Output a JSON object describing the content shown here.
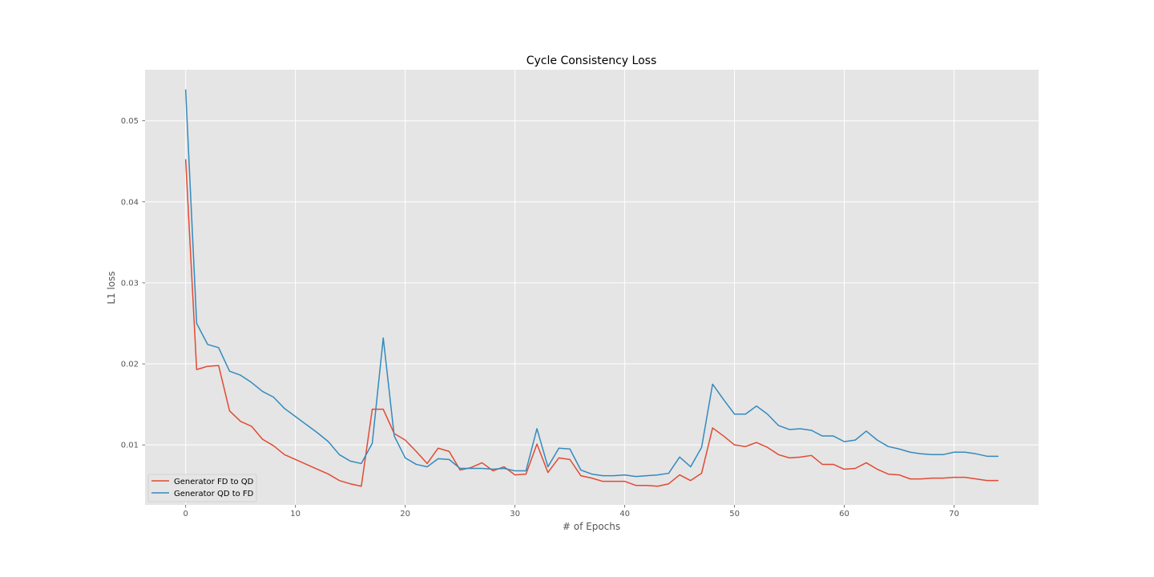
{
  "chart_data": {
    "type": "line",
    "title": "Cycle Consistency Loss",
    "xlabel": "# of Epochs",
    "ylabel": "L1 loss",
    "xlim": [
      -3.7,
      77.7
    ],
    "ylim": [
      0.0026,
      0.0563
    ],
    "xticks": [
      0,
      10,
      20,
      30,
      40,
      50,
      60,
      70
    ],
    "yticks": [
      0.01,
      0.02,
      0.03,
      0.04,
      0.05
    ],
    "ytick_labels": [
      "0.01",
      "0.02",
      "0.03",
      "0.04",
      "0.05"
    ],
    "grid": true,
    "legend_position": "lower-left",
    "plot_background": "#e5e5e5",
    "series": [
      {
        "name": "Generator FD to QD",
        "color": "#e24a33",
        "values": [
          0.0452,
          0.0193,
          0.0197,
          0.0198,
          0.0142,
          0.0129,
          0.0123,
          0.0107,
          0.0099,
          0.0088,
          0.0082,
          0.0076,
          0.007,
          0.0064,
          0.0056,
          0.0052,
          0.0049,
          0.0144,
          0.0144,
          0.0114,
          0.0106,
          0.0092,
          0.0077,
          0.0096,
          0.0092,
          0.0069,
          0.0072,
          0.0078,
          0.0068,
          0.0073,
          0.0063,
          0.0064,
          0.0101,
          0.0066,
          0.0084,
          0.0082,
          0.0062,
          0.0059,
          0.0055,
          0.0055,
          0.0055,
          0.005,
          0.005,
          0.0049,
          0.0052,
          0.0063,
          0.0056,
          0.0065,
          0.0121,
          0.0111,
          0.01,
          0.0098,
          0.0103,
          0.0097,
          0.0088,
          0.0084,
          0.0085,
          0.0087,
          0.0076,
          0.0076,
          0.007,
          0.0071,
          0.0078,
          0.007,
          0.0064,
          0.0063,
          0.0058,
          0.0058,
          0.0059,
          0.0059,
          0.006,
          0.006,
          0.0058,
          0.0056,
          0.0056
        ]
      },
      {
        "name": "Generator QD to FD",
        "color": "#348abd",
        "values": [
          0.0538,
          0.025,
          0.0224,
          0.022,
          0.0191,
          0.0186,
          0.0177,
          0.0166,
          0.0159,
          0.0145,
          0.0135,
          0.0125,
          0.0115,
          0.0104,
          0.0088,
          0.008,
          0.0077,
          0.0102,
          0.0232,
          0.0111,
          0.0084,
          0.0076,
          0.0073,
          0.0083,
          0.0082,
          0.0071,
          0.0071,
          0.0071,
          0.007,
          0.0071,
          0.0068,
          0.0068,
          0.012,
          0.0073,
          0.0096,
          0.0095,
          0.0069,
          0.0064,
          0.0062,
          0.0062,
          0.0063,
          0.0061,
          0.0062,
          0.0063,
          0.0065,
          0.0085,
          0.0073,
          0.0097,
          0.0175,
          0.0156,
          0.0138,
          0.0138,
          0.0148,
          0.0138,
          0.0124,
          0.0119,
          0.012,
          0.0118,
          0.0111,
          0.0111,
          0.0104,
          0.0106,
          0.0117,
          0.0106,
          0.0098,
          0.0095,
          0.0091,
          0.0089,
          0.0088,
          0.0088,
          0.0091,
          0.0091,
          0.0089,
          0.0086,
          0.0086
        ]
      }
    ]
  }
}
